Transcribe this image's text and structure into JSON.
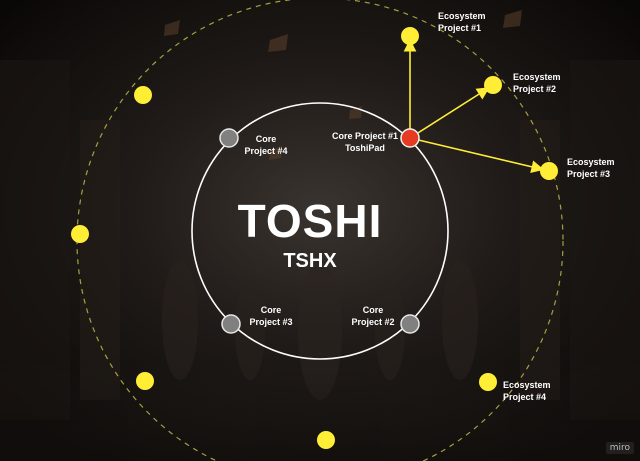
{
  "title": "TOSHI",
  "subtitle": "TSHX",
  "core_projects": [
    {
      "line1": "Core",
      "line2": "Project #1",
      "line3": "ToshiPad"
    },
    {
      "line1": "Core",
      "line2": "Project #2"
    },
    {
      "line1": "Core",
      "line2": "Project #3"
    },
    {
      "line1": "Core",
      "line2": "Project #4"
    }
  ],
  "ecosystem_projects": [
    {
      "line1": "Ecosystem",
      "line2": "Project #1"
    },
    {
      "line1": "Ecosystem",
      "line2": "Project #2"
    },
    {
      "line1": "Ecosystem",
      "line2": "Project #3"
    },
    {
      "line1": "Ecosystem",
      "line2": "Project #4"
    }
  ],
  "watermark": "miro",
  "colors": {
    "accent_yellow": "#ffee35",
    "active_node": "#e53b22",
    "inactive_node": "#808080",
    "ring": "#ffffff",
    "orbit": "#bdb84a"
  }
}
